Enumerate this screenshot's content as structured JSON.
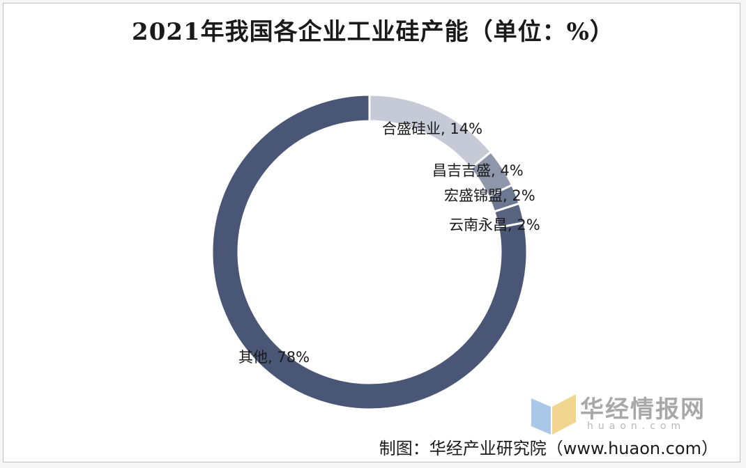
{
  "chart_data": {
    "type": "pie",
    "style": "donut",
    "title": "2021年我国各企业工业硅产能（单位：%）",
    "series": [
      {
        "label": "合盛硅业",
        "value": 14,
        "text": "合盛硅业, 14%",
        "color": "#c5cad6"
      },
      {
        "label": "昌吉吉盛",
        "value": 4,
        "text": "昌吉吉盛, 4%",
        "color": "#8d96ab"
      },
      {
        "label": "宏盛锦盟",
        "value": 2,
        "text": "宏盛锦盟, 2%",
        "color": "#6d7893"
      },
      {
        "label": "云南永昌",
        "value": 2,
        "text": "云南永昌, 2%",
        "color": "#58647f"
      },
      {
        "label": "其他",
        "value": 78,
        "text": "其他, 78%",
        "color": "#4a5675"
      }
    ]
  },
  "watermark": {
    "brand": "华经情报网",
    "domain": "huaon.com"
  },
  "source": "制图：华经产业研究院（www.huaon.com）"
}
